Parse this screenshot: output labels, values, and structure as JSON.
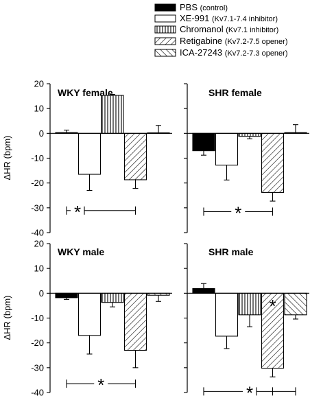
{
  "colors": {
    "pbs": "#000000",
    "axis": "#000000",
    "background": "#ffffff"
  },
  "legend": [
    {
      "label": "PBS",
      "note": "(control)",
      "fill": "solid"
    },
    {
      "label": "XE-991",
      "note": "(Kv7.1-7.4 inhibitor)",
      "fill": "white"
    },
    {
      "label": "Chromanol",
      "note": "(Kv7.1 inhibitor)",
      "fill": "vertical"
    },
    {
      "label": "Retigabine",
      "note": "(Kv7.2-7.5 opener)",
      "fill": "diag-up"
    },
    {
      "label": "ICA-27243",
      "note": "(Kv7.2-7.3 opener)",
      "fill": "diag-down"
    }
  ],
  "chart_data": [
    {
      "type": "bar",
      "title": "WKY female",
      "ylabel": "ΔHR (bpm)",
      "ylim": [
        -40,
        20
      ],
      "yticks": [
        "20",
        "10",
        "0",
        "-10",
        "-20",
        "-30",
        "-40"
      ],
      "categories": [
        "PBS",
        "XE-991",
        "Chromanol",
        "Retigabine",
        "ICA-27243"
      ],
      "values": [
        0.3,
        -16.5,
        15.3,
        -18.7,
        0.2
      ],
      "errors": [
        1.0,
        6.5,
        0.4,
        3.5,
        3.0
      ],
      "significance": [
        {
          "label": "*",
          "from": "PBS",
          "to": "Retigabine"
        }
      ]
    },
    {
      "type": "bar",
      "title": "SHR female",
      "ylabel": "",
      "ylim": [
        -40,
        20
      ],
      "categories": [
        "PBS",
        "XE-991",
        "Chromanol",
        "Retigabine",
        "ICA-27243"
      ],
      "values": [
        -7.0,
        -12.8,
        -1.2,
        -23.8,
        0.3
      ],
      "errors": [
        1.8,
        6.0,
        1.0,
        3.5,
        3.2
      ],
      "significance": [
        {
          "label": "*",
          "from": "PBS",
          "to": "Retigabine"
        }
      ]
    },
    {
      "type": "bar",
      "title": "WKY male",
      "ylabel": "ΔHR (bpm)",
      "ylim": [
        -40,
        20
      ],
      "yticks": [
        "20",
        "10",
        "0",
        "-10",
        "-20",
        "-30",
        "-40"
      ],
      "categories": [
        "PBS",
        "XE-991",
        "Chromanol",
        "Retigabine",
        "ICA-27243"
      ],
      "values": [
        -1.8,
        -17.0,
        -3.7,
        -23.0,
        -0.8
      ],
      "errors": [
        0.7,
        7.5,
        1.8,
        7.0,
        2.5
      ],
      "significance": [
        {
          "label": "*",
          "from": "PBS",
          "to": "Retigabine"
        }
      ]
    },
    {
      "type": "bar",
      "title": "SHR male",
      "ylabel": "",
      "ylim": [
        -40,
        20
      ],
      "categories": [
        "PBS",
        "XE-991",
        "Chromanol",
        "Retigabine",
        "ICA-27243"
      ],
      "values": [
        1.9,
        -17.3,
        -8.7,
        -30.2,
        -8.7
      ],
      "errors": [
        2.0,
        5.0,
        4.8,
        3.5,
        1.7
      ],
      "significance": [
        {
          "label": "*",
          "from": "PBS",
          "to": "ICA-27243"
        },
        {
          "label": "*",
          "from": null,
          "to": null,
          "over": "Retigabine"
        }
      ]
    }
  ]
}
